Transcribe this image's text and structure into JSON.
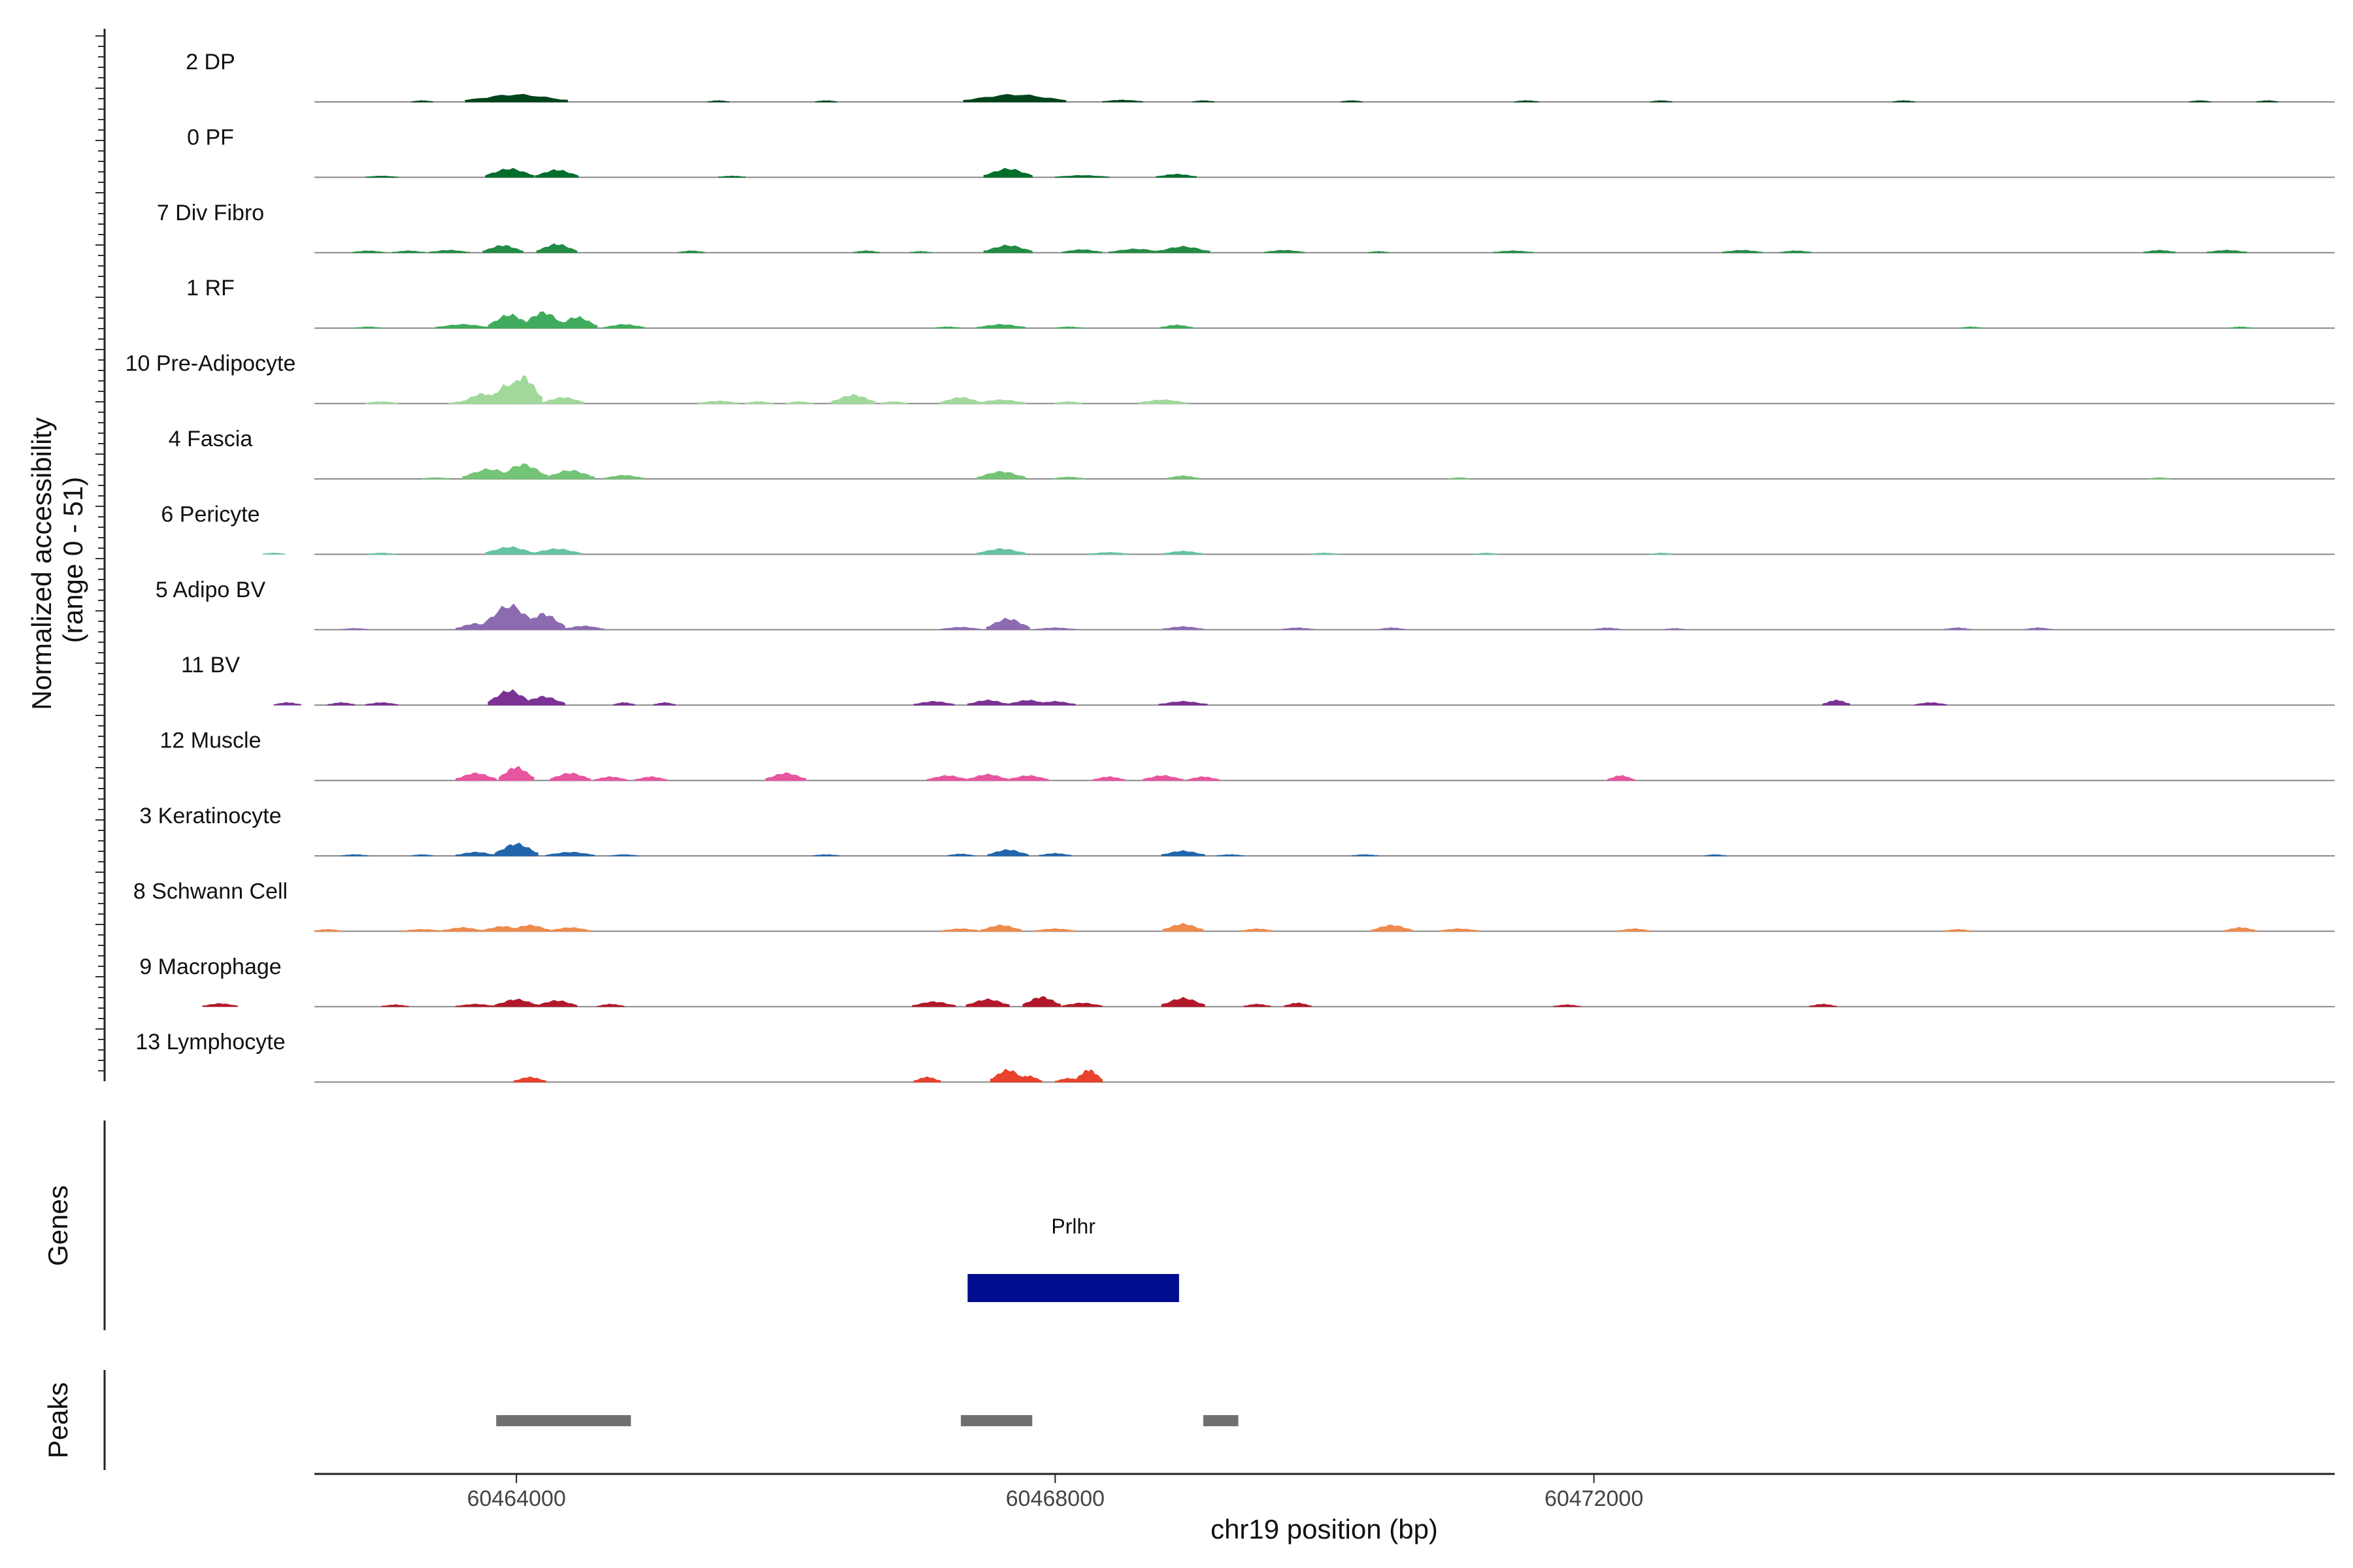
{
  "chart_data": {
    "type": "area",
    "title": "",
    "xlabel": "chr19 position (bp)",
    "ylabel": "Normalized accessibility (range 0 - 51)",
    "ylabel_line1": "Normalized accessibility",
    "ylabel_line2": "(range 0 - 51)",
    "ylim": [
      0,
      51
    ],
    "xlim": [
      60462500,
      60477500
    ],
    "x_ticks": [
      60464000,
      60468000,
      60472000
    ],
    "x_tick_labels": [
      "60464000",
      "60468000",
      "60472000"
    ],
    "tracks": [
      {
        "name": "2 DP",
        "color": "#00441b",
        "peaks": [
          [
            60464000,
            6,
            380
          ],
          [
            60467700,
            6,
            380
          ],
          [
            60463300,
            1,
            80
          ],
          [
            60465500,
            1,
            80
          ],
          [
            60466300,
            1,
            80
          ],
          [
            60468500,
            1.5,
            150
          ],
          [
            60469100,
            1,
            80
          ],
          [
            60470200,
            1,
            80
          ],
          [
            60471500,
            1,
            90
          ],
          [
            60472500,
            1,
            80
          ],
          [
            60474300,
            1,
            80
          ],
          [
            60476500,
            1,
            80
          ],
          [
            60477000,
            1,
            80
          ]
        ]
      },
      {
        "name": "0 PF",
        "color": "#006d2c",
        "peaks": [
          [
            60463950,
            7,
            180
          ],
          [
            60464300,
            6,
            160
          ],
          [
            60467650,
            7,
            180
          ],
          [
            60468200,
            1.5,
            200
          ],
          [
            60468900,
            2.5,
            150
          ],
          [
            60463000,
            1,
            120
          ],
          [
            60465600,
            1,
            100
          ]
        ]
      },
      {
        "name": "7 Div Fibro",
        "color": "#238b45",
        "peaks": [
          [
            60463900,
            6,
            150
          ],
          [
            60464300,
            7,
            150
          ],
          [
            60463500,
            2,
            150
          ],
          [
            60462900,
            1.5,
            120
          ],
          [
            60463200,
            1.5,
            120
          ],
          [
            60465300,
            1.5,
            100
          ],
          [
            60466600,
            1.5,
            100
          ],
          [
            60467000,
            1,
            80
          ],
          [
            60467650,
            6,
            180
          ],
          [
            60468200,
            2.5,
            150
          ],
          [
            60468600,
            3,
            200
          ],
          [
            60468950,
            5,
            200
          ],
          [
            60469700,
            2,
            150
          ],
          [
            60470400,
            1,
            80
          ],
          [
            60471400,
            1.5,
            150
          ],
          [
            60473100,
            2,
            150
          ],
          [
            60473500,
            1.5,
            120
          ],
          [
            60476200,
            2,
            120
          ],
          [
            60476700,
            2,
            150
          ]
        ]
      },
      {
        "name": "1 RF",
        "color": "#41ab5d",
        "peaks": [
          [
            60463950,
            11,
            160
          ],
          [
            60464200,
            13,
            160
          ],
          [
            60464450,
            9,
            150
          ],
          [
            60464800,
            3,
            150
          ],
          [
            60463600,
            3,
            200
          ],
          [
            60462900,
            1,
            100
          ],
          [
            60467600,
            3,
            180
          ],
          [
            60467200,
            1,
            100
          ],
          [
            60468100,
            1,
            100
          ],
          [
            60468900,
            2.5,
            120
          ],
          [
            60474800,
            1,
            80
          ],
          [
            60476800,
            1,
            80
          ]
        ]
      },
      {
        "name": "10 Pre-Adipocyte",
        "color": "#a1d99b",
        "peaks": [
          [
            60463950,
            16,
            160
          ],
          [
            60464050,
            22,
            140
          ],
          [
            60463750,
            8,
            150
          ],
          [
            60464350,
            5,
            150
          ],
          [
            60463000,
            1.5,
            120
          ],
          [
            60463600,
            1.5,
            100
          ],
          [
            60465500,
            2,
            150
          ],
          [
            60465800,
            1.5,
            100
          ],
          [
            60466100,
            1.5,
            100
          ],
          [
            60466500,
            7,
            160
          ],
          [
            60466800,
            1.5,
            100
          ],
          [
            60467300,
            5,
            150
          ],
          [
            60467600,
            3,
            180
          ],
          [
            60468100,
            1.5,
            100
          ],
          [
            60468800,
            3,
            180
          ]
        ]
      },
      {
        "name": "4 Fascia",
        "color": "#74c476",
        "peaks": [
          [
            60463800,
            8,
            200
          ],
          [
            60464050,
            12,
            180
          ],
          [
            60464400,
            7,
            180
          ],
          [
            60464800,
            3,
            150
          ],
          [
            60463400,
            1,
            100
          ],
          [
            60467600,
            6,
            180
          ],
          [
            60468100,
            1.5,
            120
          ],
          [
            60468950,
            2.5,
            120
          ],
          [
            60471000,
            1,
            80
          ],
          [
            60476200,
            1,
            80
          ]
        ]
      },
      {
        "name": "6 Pericyte",
        "color": "#66c2a4",
        "peaks": [
          [
            60463950,
            6,
            180
          ],
          [
            60464300,
            4.5,
            180
          ],
          [
            60463000,
            1,
            100
          ],
          [
            60462200,
            1,
            80
          ],
          [
            60467600,
            4.5,
            180
          ],
          [
            60468400,
            1.5,
            150
          ],
          [
            60468950,
            2.5,
            150
          ],
          [
            60470000,
            1,
            100
          ],
          [
            60471200,
            1,
            80
          ],
          [
            60472500,
            1,
            80
          ]
        ]
      },
      {
        "name": "5 Adipo BV",
        "color": "#8c6bb1",
        "peaks": [
          [
            60463950,
            20,
            200
          ],
          [
            60464200,
            13,
            160
          ],
          [
            60463700,
            5,
            150
          ],
          [
            60464500,
            3,
            150
          ],
          [
            60462800,
            1,
            100
          ],
          [
            60467650,
            9,
            160
          ],
          [
            60467300,
            2,
            150
          ],
          [
            60468000,
            1.5,
            150
          ],
          [
            60468950,
            2.5,
            150
          ],
          [
            60469800,
            1.5,
            120
          ],
          [
            60470500,
            1.5,
            100
          ],
          [
            60472100,
            1.5,
            100
          ],
          [
            60472600,
            1,
            80
          ],
          [
            60474700,
            1.5,
            100
          ],
          [
            60475300,
            1.5,
            100
          ]
        ]
      },
      {
        "name": "11 BV",
        "color": "#7b3294",
        "peaks": [
          [
            60463950,
            12,
            160
          ],
          [
            60464200,
            7,
            160
          ],
          [
            60462300,
            2,
            100
          ],
          [
            60462700,
            2,
            100
          ],
          [
            60463000,
            2,
            120
          ],
          [
            60464800,
            2,
            80
          ],
          [
            60465100,
            2,
            80
          ],
          [
            60467100,
            3,
            150
          ],
          [
            60467500,
            4,
            150
          ],
          [
            60467800,
            4,
            150
          ],
          [
            60468000,
            3,
            150
          ],
          [
            60468950,
            3,
            180
          ],
          [
            60473800,
            4,
            100
          ],
          [
            60474500,
            2,
            120
          ]
        ]
      },
      {
        "name": "12 Muscle",
        "color": "#e7549f",
        "peaks": [
          [
            60463700,
            6,
            150
          ],
          [
            60464000,
            11,
            130
          ],
          [
            60464400,
            6,
            150
          ],
          [
            60464700,
            3,
            120
          ],
          [
            60465000,
            3,
            120
          ],
          [
            60466000,
            6,
            150
          ],
          [
            60467200,
            4,
            150
          ],
          [
            60467500,
            5,
            150
          ],
          [
            60467800,
            4,
            150
          ],
          [
            60468400,
            3,
            120
          ],
          [
            60468800,
            4,
            150
          ],
          [
            60469100,
            3,
            120
          ],
          [
            60472200,
            4,
            100
          ]
        ]
      },
      {
        "name": "3 Keratinocyte",
        "color": "#2166ac",
        "peaks": [
          [
            60464000,
            10,
            160
          ],
          [
            60463700,
            3,
            150
          ],
          [
            60464400,
            3,
            180
          ],
          [
            60464800,
            1,
            100
          ],
          [
            60462800,
            1,
            100
          ],
          [
            60463300,
            1,
            80
          ],
          [
            60466300,
            1,
            100
          ],
          [
            60467300,
            1.5,
            100
          ],
          [
            60467650,
            5,
            150
          ],
          [
            60468000,
            2,
            120
          ],
          [
            60468950,
            4,
            160
          ],
          [
            60469300,
            1,
            100
          ],
          [
            60470300,
            1,
            100
          ],
          [
            60472900,
            1,
            80
          ]
        ]
      },
      {
        "name": "8 Schwann Cell",
        "color": "#ef8a4c",
        "peaks": [
          [
            60463300,
            1.5,
            150
          ],
          [
            60463600,
            3,
            150
          ],
          [
            60463900,
            4,
            150
          ],
          [
            60464100,
            5,
            150
          ],
          [
            60464400,
            3,
            150
          ],
          [
            60462600,
            1.5,
            100
          ],
          [
            60467300,
            2,
            150
          ],
          [
            60467600,
            5,
            150
          ],
          [
            60468000,
            2,
            150
          ],
          [
            60468950,
            6,
            150
          ],
          [
            60469500,
            2,
            120
          ],
          [
            60470500,
            5,
            150
          ],
          [
            60471000,
            2,
            150
          ],
          [
            60472300,
            2,
            120
          ],
          [
            60474700,
            1.5,
            100
          ],
          [
            60476800,
            3,
            120
          ]
        ]
      },
      {
        "name": "9 Macrophage",
        "color": "#b2182b",
        "peaks": [
          [
            60461800,
            2.5,
            130
          ],
          [
            60463100,
            1.5,
            100
          ],
          [
            60463700,
            2,
            150
          ],
          [
            60464000,
            6,
            160
          ],
          [
            60464300,
            5,
            150
          ],
          [
            60464700,
            2,
            100
          ],
          [
            60467100,
            4,
            160
          ],
          [
            60467500,
            6,
            160
          ],
          [
            60467900,
            8,
            140
          ],
          [
            60468200,
            3,
            150
          ],
          [
            60468950,
            7,
            160
          ],
          [
            60469500,
            2,
            100
          ],
          [
            60469800,
            3,
            100
          ],
          [
            60471800,
            1.5,
            100
          ],
          [
            60473700,
            2,
            100
          ]
        ]
      },
      {
        "name": "13 Lymphocyte",
        "color": "#e8422d",
        "peaks": [
          [
            60464100,
            4,
            120
          ],
          [
            60467050,
            4,
            100
          ],
          [
            60467650,
            10,
            130
          ],
          [
            60467800,
            5,
            100
          ],
          [
            60468250,
            10,
            100
          ],
          [
            60468100,
            3,
            100
          ]
        ]
      }
    ],
    "genes": {
      "title": "Genes",
      "items": [
        {
          "name": "Prlhr",
          "start": 60467350,
          "end": 60468920,
          "color": "#000d8f"
        }
      ]
    },
    "peaks_track": {
      "title": "Peaks",
      "color": "#707070",
      "items": [
        [
          60463850,
          60464850
        ],
        [
          60467300,
          60467830
        ],
        [
          60469100,
          60469360
        ]
      ]
    }
  }
}
